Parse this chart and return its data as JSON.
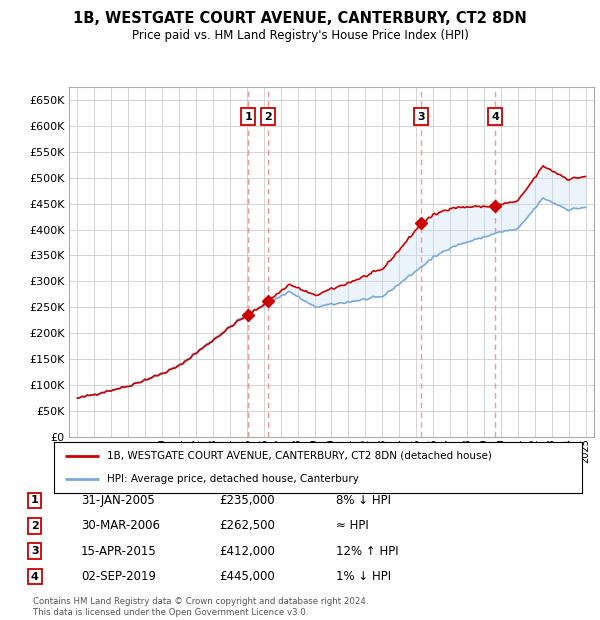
{
  "title": "1B, WESTGATE COURT AVENUE, CANTERBURY, CT2 8DN",
  "subtitle": "Price paid vs. HM Land Registry's House Price Index (HPI)",
  "legend_house": "1B, WESTGATE COURT AVENUE, CANTERBURY, CT2 8DN (detached house)",
  "legend_hpi": "HPI: Average price, detached house, Canterbury",
  "footer": "Contains HM Land Registry data © Crown copyright and database right 2024.\nThis data is licensed under the Open Government Licence v3.0.",
  "sales": [
    {
      "num": 1,
      "date_num": 2005.083,
      "label": "31-JAN-2005",
      "price": 235000,
      "rel": "8% ↓ HPI"
    },
    {
      "num": 2,
      "date_num": 2006.25,
      "label": "30-MAR-2006",
      "price": 262500,
      "rel": "≈ HPI"
    },
    {
      "num": 3,
      "date_num": 2015.292,
      "label": "15-APR-2015",
      "price": 412000,
      "rel": "12% ↑ HPI"
    },
    {
      "num": 4,
      "date_num": 2019.667,
      "label": "02-SEP-2019",
      "price": 445000,
      "rel": "1% ↓ HPI"
    }
  ],
  "ylim": [
    0,
    675000
  ],
  "yticks": [
    0,
    50000,
    100000,
    150000,
    200000,
    250000,
    300000,
    350000,
    400000,
    450000,
    500000,
    550000,
    600000,
    650000
  ],
  "hpi_color": "#7aaadd",
  "price_color": "#cc0000",
  "sale_box_color": "#cc0000",
  "vline_color": "#ff8888",
  "shade_color": "#c8dff5",
  "background_color": "#ffffff",
  "grid_color": "#cccccc",
  "xlim_left": 1994.5,
  "xlim_right": 2025.5
}
